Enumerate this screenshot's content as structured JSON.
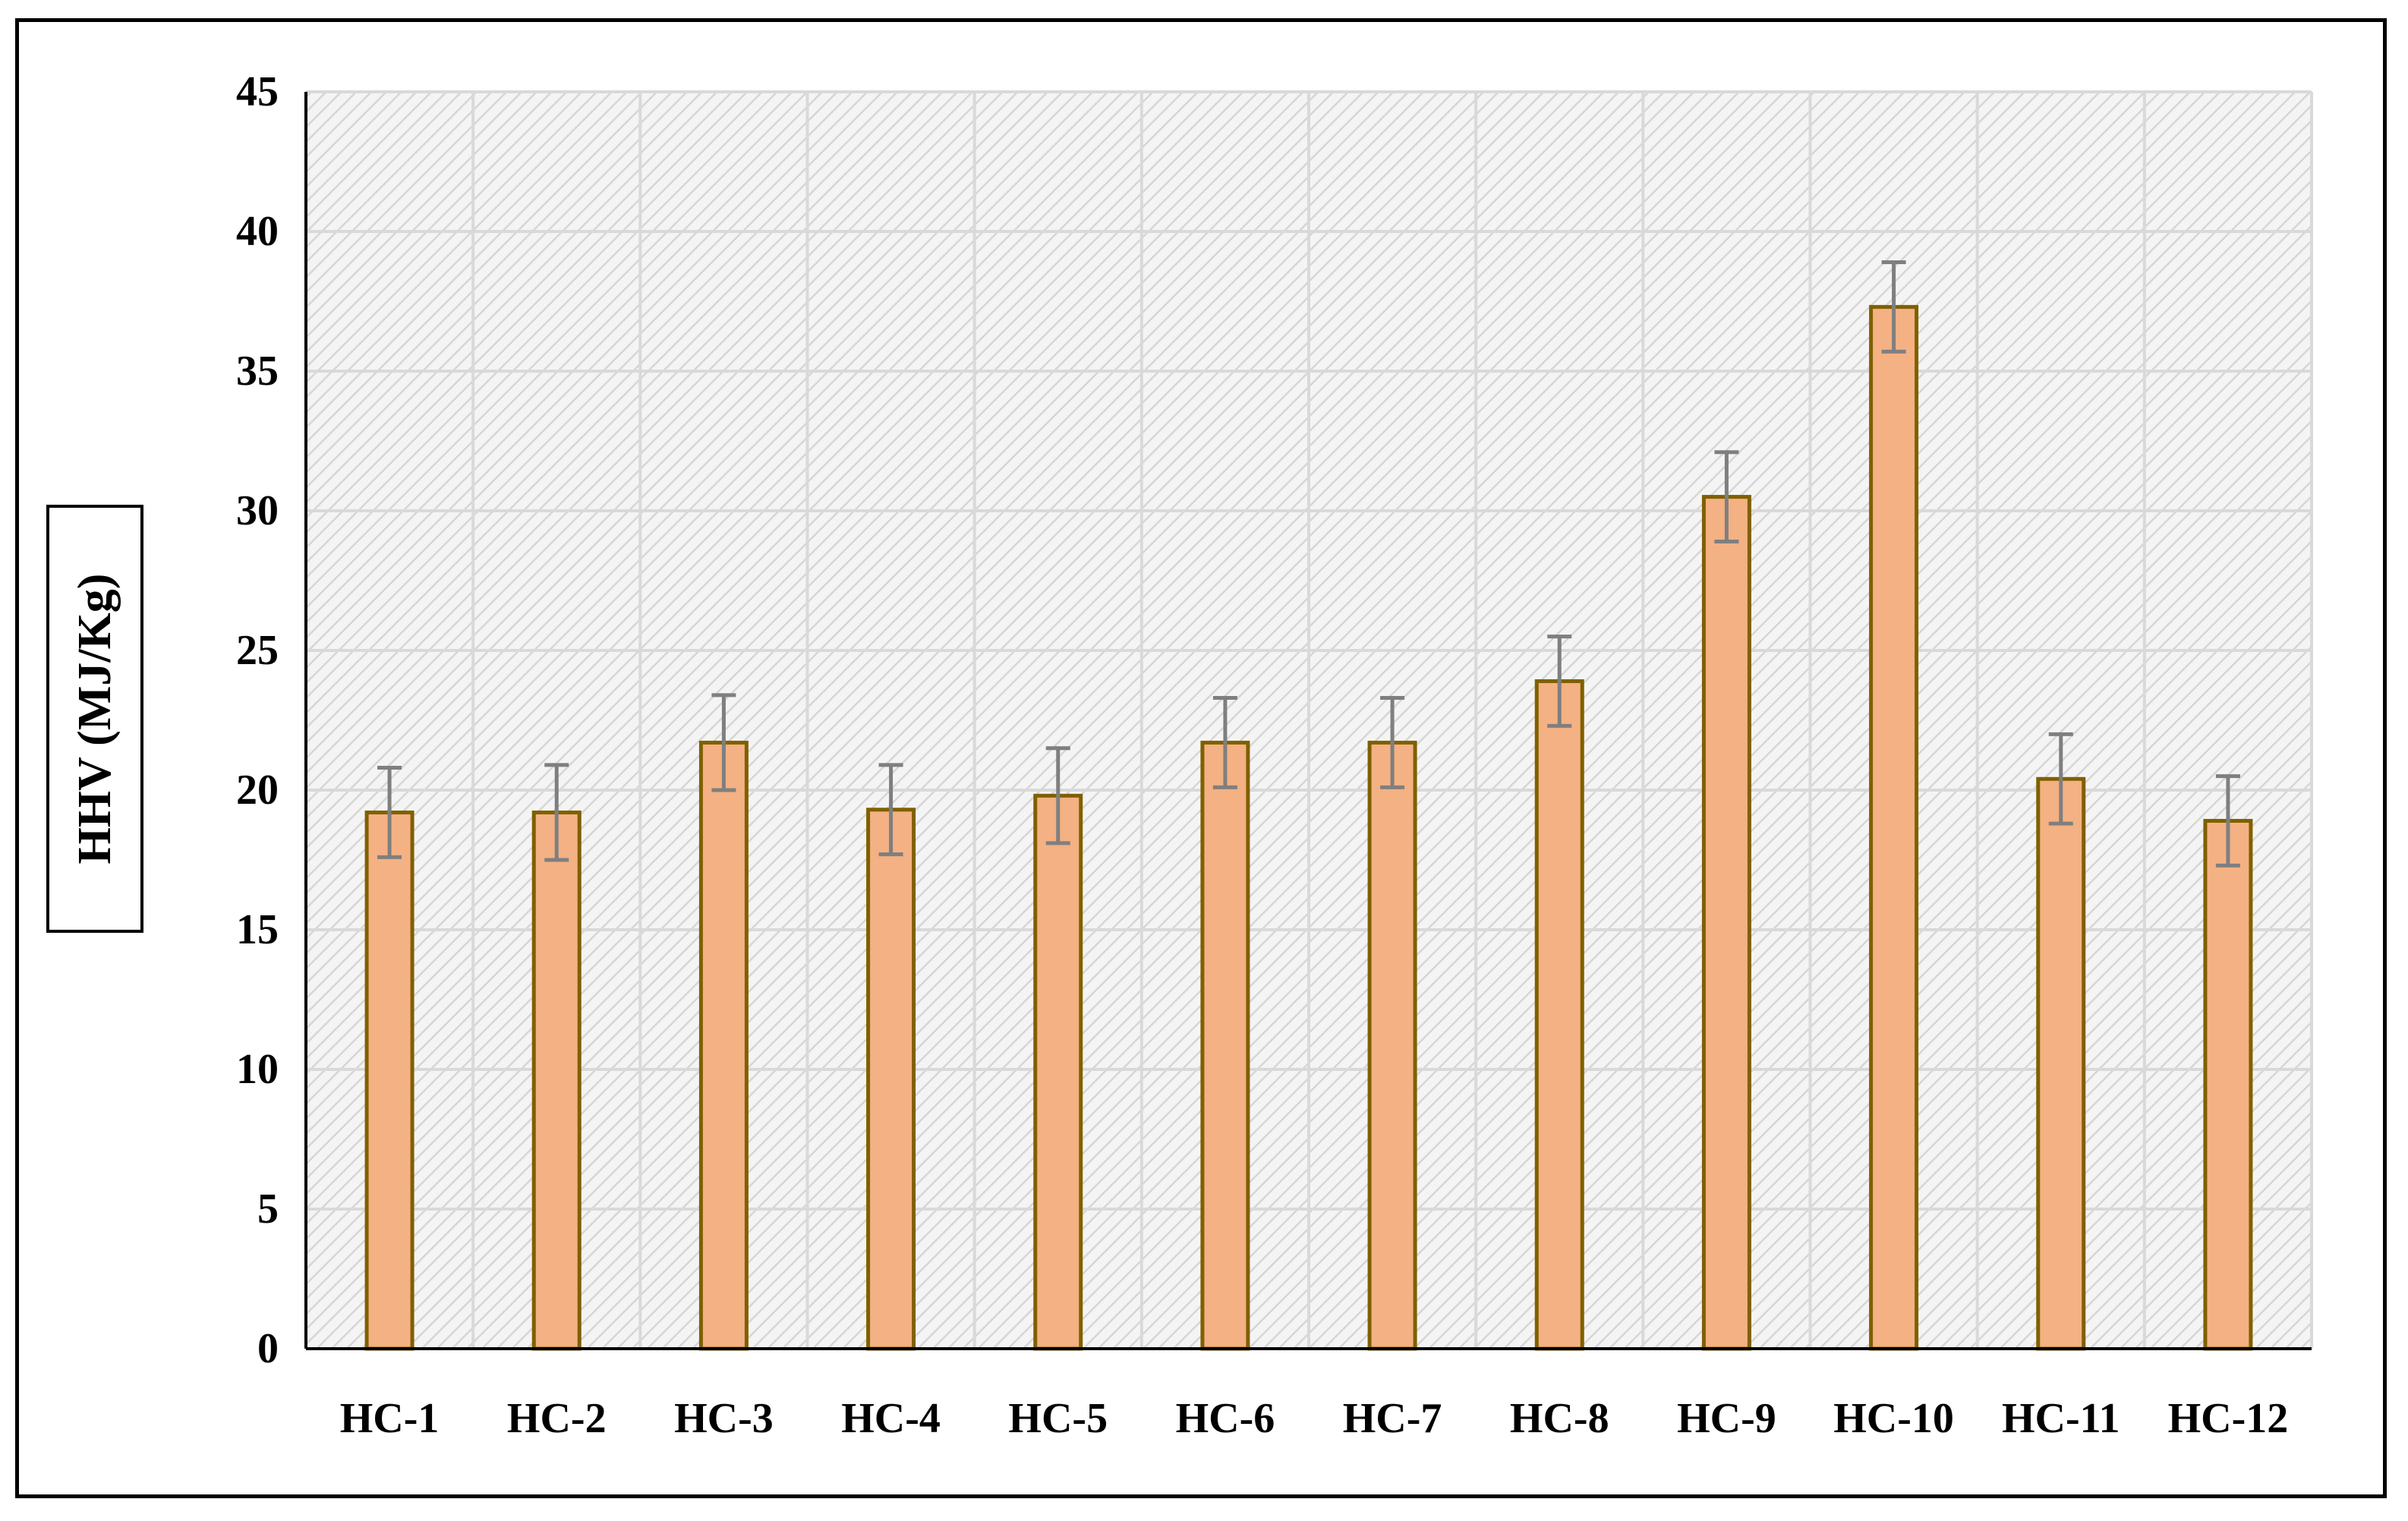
{
  "chart_data": {
    "type": "bar",
    "title": "",
    "xlabel": "",
    "ylabel": "HHV (MJ/Kg)",
    "categories": [
      "HC-1",
      "HC-2",
      "HC-3",
      "HC-4",
      "HC-5",
      "HC-6",
      "HC-7",
      "HC-8",
      "HC-9",
      "HC-10",
      "HC-11",
      "HC-12"
    ],
    "series": [
      {
        "values": [
          19.2,
          19.2,
          21.7,
          19.3,
          19.8,
          21.7,
          21.7,
          23.9,
          30.5,
          37.3,
          20.4,
          18.9
        ],
        "error": [
          1.6,
          1.7,
          1.7,
          1.6,
          1.7,
          1.6,
          1.6,
          1.6,
          1.6,
          1.6,
          1.6,
          1.6
        ]
      }
    ],
    "ylim": [
      0,
      45
    ],
    "yticks": [
      "0",
      "5",
      "10",
      "15",
      "20",
      "25",
      "30",
      "35",
      "40",
      "45"
    ],
    "grid": true,
    "legend": "none",
    "colors": {
      "bar_fill": "#F4B183",
      "bar_stroke": "#7F6000",
      "error_bar": "#7F7F7F",
      "plot_background": "#F2F2F2",
      "hatch": "#D9D9D9",
      "gridline": "#D9D9D9",
      "axis": "#000000"
    }
  }
}
